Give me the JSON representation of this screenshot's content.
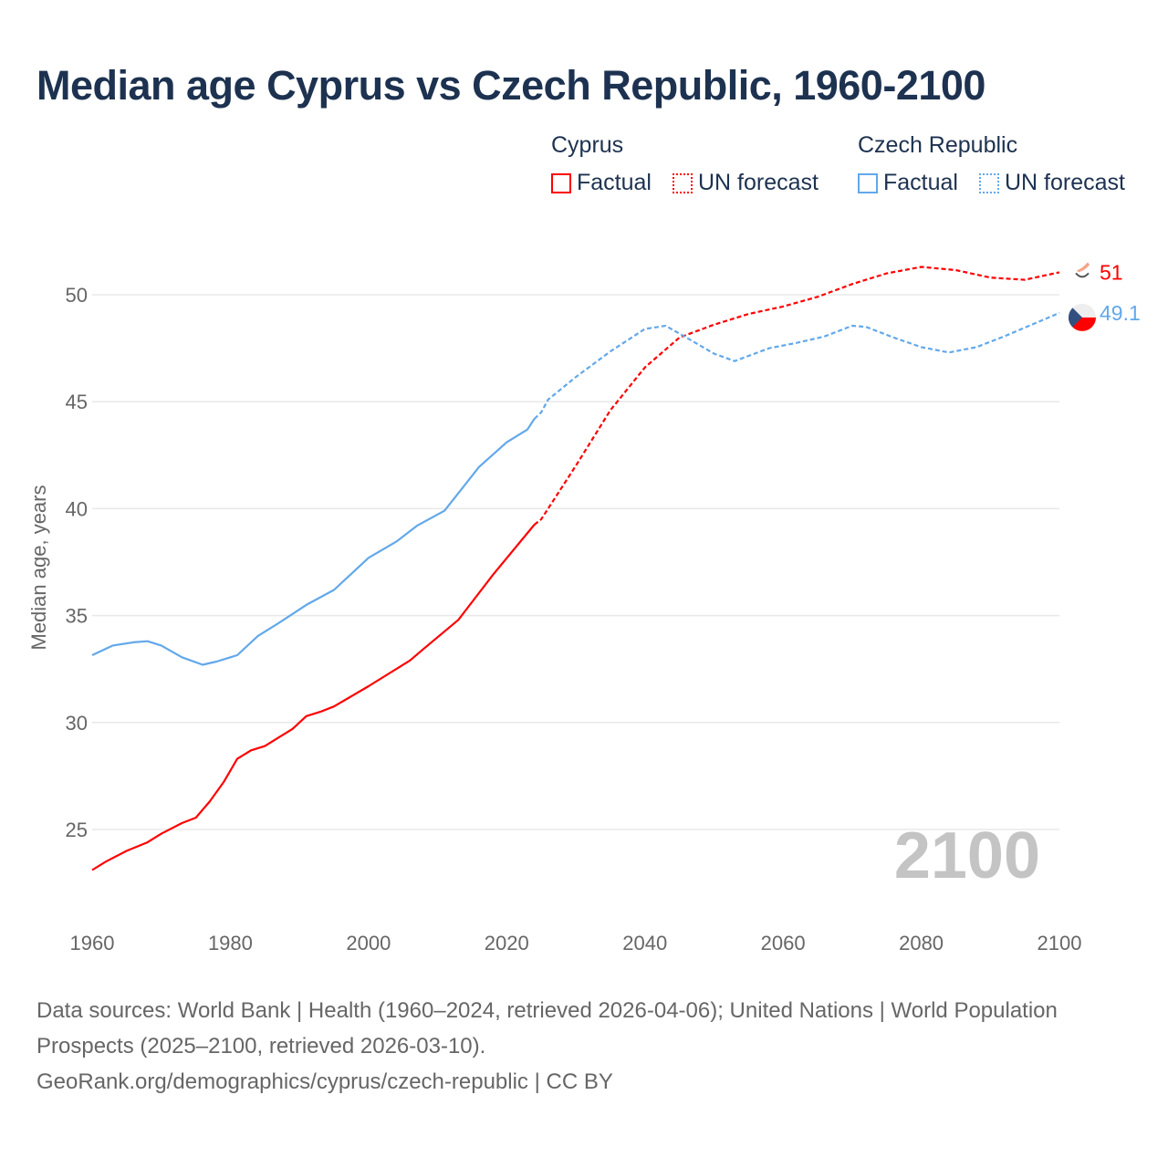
{
  "chart_data": {
    "type": "line",
    "title": "Median age Cyprus vs Czech Republic, 1960-2100",
    "xlabel": "",
    "ylabel": "Median age, years",
    "xlim": [
      1960,
      2100
    ],
    "ylim": [
      21.2,
      53.5
    ],
    "xticks": [
      "1960",
      "1980",
      "2000",
      "2020",
      "2040",
      "2060",
      "2080",
      "2100"
    ],
    "yticks": [
      "25",
      "30",
      "35",
      "40",
      "45",
      "50"
    ],
    "grid": true,
    "year_label": "2100",
    "legend": {
      "placement": "top-right",
      "groups": [
        {
          "name": "Cyprus",
          "items": [
            "Factual",
            "UN forecast"
          ]
        },
        {
          "name": "Czech Republic",
          "items": [
            "Factual",
            "UN forecast"
          ]
        }
      ]
    },
    "series": [
      {
        "name": "Cyprus",
        "color": "#ff0000",
        "end_label": "51",
        "factual": [
          [
            1960,
            23.1
          ],
          [
            1962,
            23.5
          ],
          [
            1965,
            24.0
          ],
          [
            1968,
            24.4
          ],
          [
            1970,
            24.8
          ],
          [
            1973,
            25.3
          ],
          [
            1975,
            25.55
          ],
          [
            1977,
            26.3
          ],
          [
            1979,
            27.2
          ],
          [
            1981,
            28.3
          ],
          [
            1983,
            28.7
          ],
          [
            1985,
            28.9
          ],
          [
            1987,
            29.3
          ],
          [
            1989,
            29.7
          ],
          [
            1991,
            30.3
          ],
          [
            1993,
            30.5
          ],
          [
            1995,
            30.75
          ],
          [
            2000,
            31.7
          ],
          [
            2006,
            32.9
          ],
          [
            2008,
            33.45
          ],
          [
            2013,
            34.8
          ],
          [
            2018,
            36.9
          ],
          [
            2024,
            39.25
          ]
        ],
        "forecast": [
          [
            2024,
            39.25
          ],
          [
            2025,
            39.5
          ],
          [
            2030,
            42.0
          ],
          [
            2035,
            44.6
          ],
          [
            2040,
            46.6
          ],
          [
            2045,
            48.0
          ],
          [
            2050,
            48.6
          ],
          [
            2055,
            49.1
          ],
          [
            2060,
            49.45
          ],
          [
            2065,
            49.9
          ],
          [
            2070,
            50.5
          ],
          [
            2075,
            51.0
          ],
          [
            2080,
            51.3
          ],
          [
            2085,
            51.15
          ],
          [
            2090,
            50.8
          ],
          [
            2095,
            50.7
          ],
          [
            2100,
            51.05
          ]
        ]
      },
      {
        "name": "Czech Republic",
        "color": "#62a8ea",
        "end_label": "49.1",
        "factual": [
          [
            1960,
            33.15
          ],
          [
            1963,
            33.6
          ],
          [
            1966,
            33.75
          ],
          [
            1968,
            33.8
          ],
          [
            1970,
            33.6
          ],
          [
            1973,
            33.05
          ],
          [
            1976,
            32.7
          ],
          [
            1978,
            32.85
          ],
          [
            1981,
            33.15
          ],
          [
            1984,
            34.05
          ],
          [
            1987,
            34.65
          ],
          [
            1991,
            35.5
          ],
          [
            1995,
            36.2
          ],
          [
            2000,
            37.7
          ],
          [
            2004,
            38.45
          ],
          [
            2007,
            39.2
          ],
          [
            2011,
            39.9
          ],
          [
            2016,
            41.95
          ],
          [
            2020,
            43.1
          ],
          [
            2023,
            43.7
          ],
          [
            2024,
            44.2
          ]
        ],
        "forecast": [
          [
            2024,
            44.2
          ],
          [
            2025,
            44.5
          ],
          [
            2026,
            45.1
          ],
          [
            2030,
            46.15
          ],
          [
            2035,
            47.35
          ],
          [
            2040,
            48.4
          ],
          [
            2043,
            48.55
          ],
          [
            2046,
            48.0
          ],
          [
            2050,
            47.25
          ],
          [
            2053,
            46.9
          ],
          [
            2058,
            47.5
          ],
          [
            2062,
            47.75
          ],
          [
            2066,
            48.05
          ],
          [
            2070,
            48.55
          ],
          [
            2072,
            48.5
          ],
          [
            2076,
            48.0
          ],
          [
            2080,
            47.55
          ],
          [
            2084,
            47.3
          ],
          [
            2088,
            47.55
          ],
          [
            2092,
            48.05
          ],
          [
            2096,
            48.6
          ],
          [
            2100,
            49.15
          ]
        ]
      }
    ]
  },
  "footer": {
    "sources": "Data sources: World Bank | Health (1960–2024, retrieved 2026-04-06); United Nations | World Population Prospects (2025–2100, retrieved 2026-03-10).",
    "link": "GeoRank.org/demographics/cyprus/czech-republic | CC BY"
  }
}
